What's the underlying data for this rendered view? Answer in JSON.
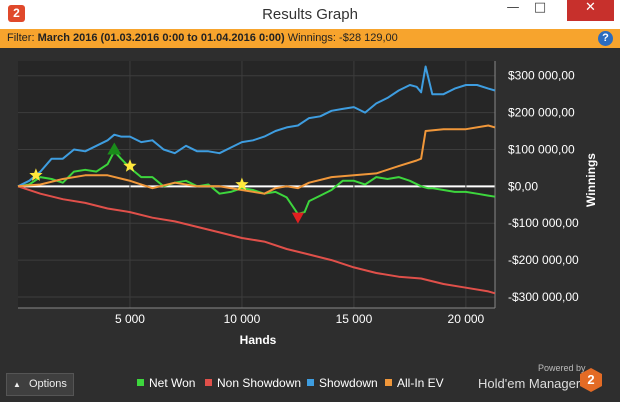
{
  "window": {
    "title": "Results Graph",
    "app_icon": "2",
    "minimize_glyph": "—",
    "maximize_glyph": "□",
    "close_glyph": "✕"
  },
  "filter": {
    "prefix": "Filter:",
    "value": "March 2016 (01.03.2016 0:00 to 01.04.2016 0:00)",
    "winnings_label": "Winnings:",
    "winnings_value": "-$28 129,00",
    "help_glyph": "?"
  },
  "options_button": {
    "label": "Options",
    "icon": "caret-up-icon"
  },
  "branding": {
    "powered_by": "Powered by",
    "product": "Hold'em Manager",
    "logo_text": "2",
    "logo_color": "#e36b25"
  },
  "colors": {
    "accent": "#f7a42d",
    "net_won": "#3dd63d",
    "non_showdown": "#e0504a",
    "showdown": "#3e9de0",
    "all_in_ev": "#f0973a"
  },
  "chart_data": {
    "type": "line",
    "xlabel": "Hands",
    "ylabel": "Winnings",
    "xlim": [
      0,
      21300
    ],
    "ylim": [
      -330000,
      340000
    ],
    "x_ticks": [
      5000,
      10000,
      15000,
      20000
    ],
    "x_tick_labels": [
      "5 000",
      "10 000",
      "15 000",
      "20 000"
    ],
    "y_ticks": [
      300000,
      200000,
      100000,
      0,
      -100000,
      -200000,
      -300000
    ],
    "y_tick_labels": [
      "$300 000,00",
      "$200 000,00",
      "$100 000,00",
      "$0,00",
      "-$100 000,00",
      "-$200 000,00",
      "-$300 000,00"
    ],
    "grid": true,
    "legend_position": "bottom",
    "series": [
      {
        "name": "Net Won",
        "color": "#3dd63d",
        "x": [
          0,
          500,
          1000,
          1500,
          2000,
          2500,
          3000,
          3500,
          4000,
          4300,
          4600,
          5000,
          5500,
          6000,
          6500,
          7000,
          7500,
          8000,
          8500,
          9000,
          9500,
          10000,
          10500,
          11000,
          11500,
          12000,
          12500,
          12800,
          13000,
          13500,
          14000,
          14500,
          15000,
          15500,
          16000,
          16500,
          17000,
          17500,
          18000,
          18300,
          18500,
          19000,
          19500,
          20000,
          20500,
          21000,
          21300
        ],
        "y": [
          0,
          5000,
          25000,
          20000,
          10000,
          40000,
          45000,
          40000,
          60000,
          95000,
          75000,
          50000,
          25000,
          25000,
          0,
          10000,
          15000,
          0,
          5000,
          -20000,
          -15000,
          -5000,
          -10000,
          -20000,
          -15000,
          -30000,
          -75000,
          -70000,
          -40000,
          -25000,
          -10000,
          15000,
          15000,
          5000,
          25000,
          20000,
          25000,
          15000,
          0,
          -5000,
          -5000,
          -10000,
          -15000,
          -15000,
          -20000,
          -25000,
          -28000
        ]
      },
      {
        "name": "Non Showdown",
        "color": "#e0504a",
        "x": [
          0,
          1000,
          2000,
          3000,
          4000,
          5000,
          6000,
          7000,
          8000,
          9000,
          10000,
          11000,
          12000,
          13000,
          14000,
          15000,
          16000,
          17000,
          18000,
          19000,
          20000,
          21000,
          21300
        ],
        "y": [
          0,
          -20000,
          -35000,
          -45000,
          -60000,
          -70000,
          -85000,
          -95000,
          -110000,
          -125000,
          -140000,
          -150000,
          -170000,
          -185000,
          -200000,
          -220000,
          -235000,
          -245000,
          -250000,
          -265000,
          -275000,
          -285000,
          -290000
        ]
      },
      {
        "name": "Showdown",
        "color": "#3e9de0",
        "x": [
          0,
          500,
          1000,
          1500,
          2000,
          2500,
          3000,
          3500,
          4000,
          4300,
          4600,
          5000,
          5500,
          6000,
          6500,
          7000,
          7500,
          8000,
          8500,
          9000,
          9500,
          10000,
          10500,
          11000,
          11500,
          12000,
          12500,
          13000,
          13500,
          14000,
          14500,
          15000,
          15500,
          16000,
          16500,
          17000,
          17500,
          17800,
          18000,
          18200,
          18500,
          19000,
          19500,
          20000,
          20500,
          21000,
          21300
        ],
        "y": [
          0,
          15000,
          40000,
          75000,
          75000,
          100000,
          95000,
          110000,
          125000,
          140000,
          135000,
          135000,
          120000,
          125000,
          100000,
          90000,
          110000,
          95000,
          95000,
          90000,
          105000,
          120000,
          125000,
          135000,
          150000,
          160000,
          165000,
          185000,
          190000,
          205000,
          210000,
          215000,
          200000,
          225000,
          240000,
          260000,
          275000,
          270000,
          255000,
          325000,
          250000,
          250000,
          265000,
          275000,
          275000,
          265000,
          260000
        ]
      },
      {
        "name": "All-In EV",
        "color": "#f0973a",
        "x": [
          0,
          1000,
          2000,
          3000,
          4000,
          5000,
          6000,
          7000,
          8000,
          9000,
          10000,
          11000,
          11500,
          12000,
          12500,
          13000,
          14000,
          15000,
          16000,
          17000,
          17800,
          18000,
          18200,
          19000,
          20000,
          21000,
          21300
        ],
        "y": [
          0,
          5000,
          20000,
          30000,
          30000,
          15000,
          -5000,
          10000,
          0,
          0,
          -10000,
          -20000,
          -5000,
          0,
          -5000,
          10000,
          25000,
          30000,
          35000,
          55000,
          70000,
          75000,
          150000,
          155000,
          155000,
          165000,
          160000
        ]
      }
    ],
    "markers": [
      {
        "type": "star",
        "color": "#ffe83c",
        "x": 800,
        "y": 30000
      },
      {
        "type": "star",
        "color": "#ffe83c",
        "x": 5000,
        "y": 55000
      },
      {
        "type": "star",
        "color": "#ffe83c",
        "x": 10000,
        "y": 5000
      },
      {
        "type": "triangle-up",
        "color": "#1a8c1a",
        "x": 4300,
        "y": 100000
      },
      {
        "type": "triangle-down",
        "color": "#e02020",
        "x": 12500,
        "y": -85000
      }
    ]
  }
}
